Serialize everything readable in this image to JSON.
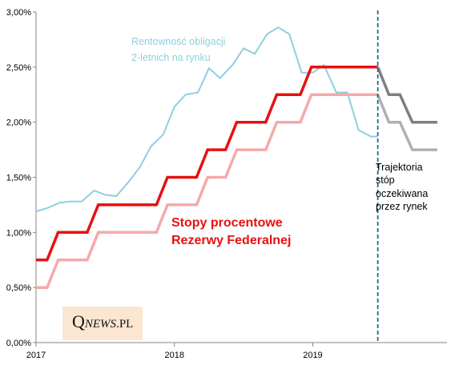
{
  "chart_data": {
    "type": "line",
    "y_ticks": [
      "0,00%",
      "0,50%",
      "1,00%",
      "1,50%",
      "2,00%",
      "2,50%",
      "3,00%"
    ],
    "x_ticks": [
      {
        "label": "2017",
        "t": 2017.0
      },
      {
        "label": "2018",
        "t": 2018.0
      },
      {
        "label": "2019",
        "t": 2019.0
      }
    ],
    "xlim": [
      2017.0,
      2019.97
    ],
    "ylim": [
      0,
      3.0
    ],
    "grid": false,
    "divider_t": 2019.47,
    "series": [
      {
        "name": "Rentowność obligacji 2-letnich na rynku",
        "color": "#8ecfe0",
        "style": "line",
        "x": [
          2017.0,
          2017.08,
          2017.17,
          2017.25,
          2017.33,
          2017.42,
          2017.5,
          2017.58,
          2017.67,
          2017.75,
          2017.83,
          2017.92,
          2018.0,
          2018.08,
          2018.17,
          2018.25,
          2018.33,
          2018.42,
          2018.5,
          2018.58,
          2018.67,
          2018.75,
          2018.83,
          2018.92,
          2019.0,
          2019.08,
          2019.17,
          2019.25,
          2019.33,
          2019.42,
          2019.47
        ],
        "y": [
          1.19,
          1.22,
          1.27,
          1.28,
          1.28,
          1.38,
          1.34,
          1.33,
          1.46,
          1.59,
          1.78,
          1.89,
          2.14,
          2.25,
          2.27,
          2.49,
          2.4,
          2.52,
          2.67,
          2.62,
          2.8,
          2.86,
          2.8,
          2.45,
          2.45,
          2.52,
          2.27,
          2.27,
          1.93,
          1.87,
          1.87
        ]
      },
      {
        "name": "Stopy procentowe Rezerwy Federalnej",
        "color": "#e81010",
        "style": "upper",
        "x": [
          2017.0,
          2017.08,
          2017.16,
          2017.37,
          2017.45,
          2017.87,
          2017.95,
          2018.16,
          2018.24,
          2018.37,
          2018.45,
          2018.66,
          2018.74,
          2018.91,
          2018.99,
          2019.47
        ],
        "y": [
          0.75,
          0.75,
          1.0,
          1.0,
          1.25,
          1.25,
          1.5,
          1.5,
          1.75,
          1.75,
          2.0,
          2.0,
          2.25,
          2.25,
          2.5,
          2.5
        ]
      },
      {
        "name": "",
        "color": "#f5a9a9",
        "style": "lower",
        "x": [
          2017.0,
          2017.08,
          2017.16,
          2017.37,
          2017.45,
          2017.87,
          2017.95,
          2018.16,
          2018.24,
          2018.37,
          2018.45,
          2018.66,
          2018.74,
          2018.91,
          2018.99,
          2019.47
        ],
        "y": [
          0.5,
          0.5,
          0.75,
          0.75,
          1.0,
          1.0,
          1.25,
          1.25,
          1.5,
          1.5,
          1.75,
          1.75,
          2.0,
          2.0,
          2.25,
          2.25
        ]
      },
      {
        "name": "Trajektoria stóp oczekiwana przez rynek",
        "color": "#7f7f7f",
        "style": "proj-upper",
        "x": [
          2019.47,
          2019.55,
          2019.63,
          2019.72,
          2019.8,
          2019.9
        ],
        "y": [
          2.5,
          2.25,
          2.25,
          2.0,
          2.0,
          2.0
        ]
      },
      {
        "name": "",
        "color": "#b0b0b0",
        "style": "proj-lower",
        "x": [
          2019.47,
          2019.55,
          2019.63,
          2019.72,
          2019.8,
          2019.9
        ],
        "y": [
          2.25,
          2.0,
          2.0,
          1.75,
          1.75,
          1.75
        ]
      }
    ],
    "annotations": {
      "yield_line1": "Rentowność obligacji",
      "yield_line2": "2-letnich na rynku",
      "fed_line1": "Stopy procentowe",
      "fed_line2": "Rezerwy Federalnej",
      "traj_line1": "Trajektoria",
      "traj_line2": "stóp",
      "traj_line3": "oczekiwana",
      "traj_line4": "przez rynek"
    }
  },
  "logo": {
    "big": "Q",
    "small": "NEWS",
    "suffix": ".PL"
  }
}
